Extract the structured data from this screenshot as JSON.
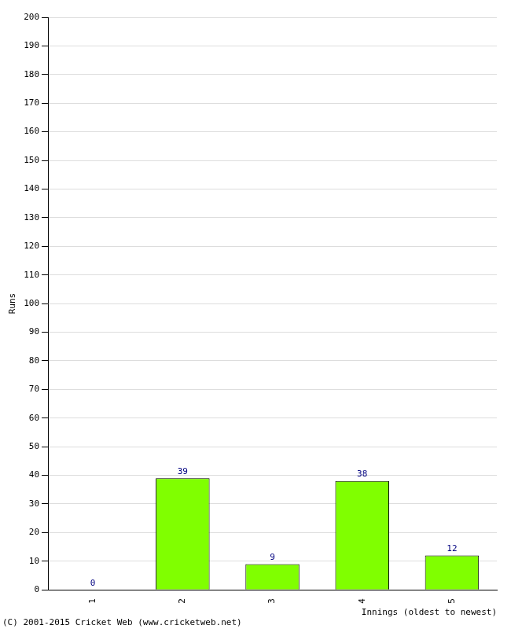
{
  "chart_data": {
    "type": "bar",
    "y_label": "Runs",
    "x_label": "Innings (oldest to newest)",
    "footer": "(C) 2001-2015 Cricket Web (www.cricketweb.net)",
    "categories": [
      "1",
      "2",
      "3",
      "4",
      "5"
    ],
    "values": [
      0,
      39,
      9,
      38,
      12
    ],
    "color": "#80ff00",
    "ylim": [
      0,
      200
    ],
    "yticks": [
      0,
      10,
      20,
      30,
      40,
      50,
      60,
      70,
      80,
      90,
      100,
      110,
      120,
      130,
      140,
      150,
      160,
      170,
      180,
      190,
      200
    ],
    "grid": true,
    "data_labels": true
  }
}
